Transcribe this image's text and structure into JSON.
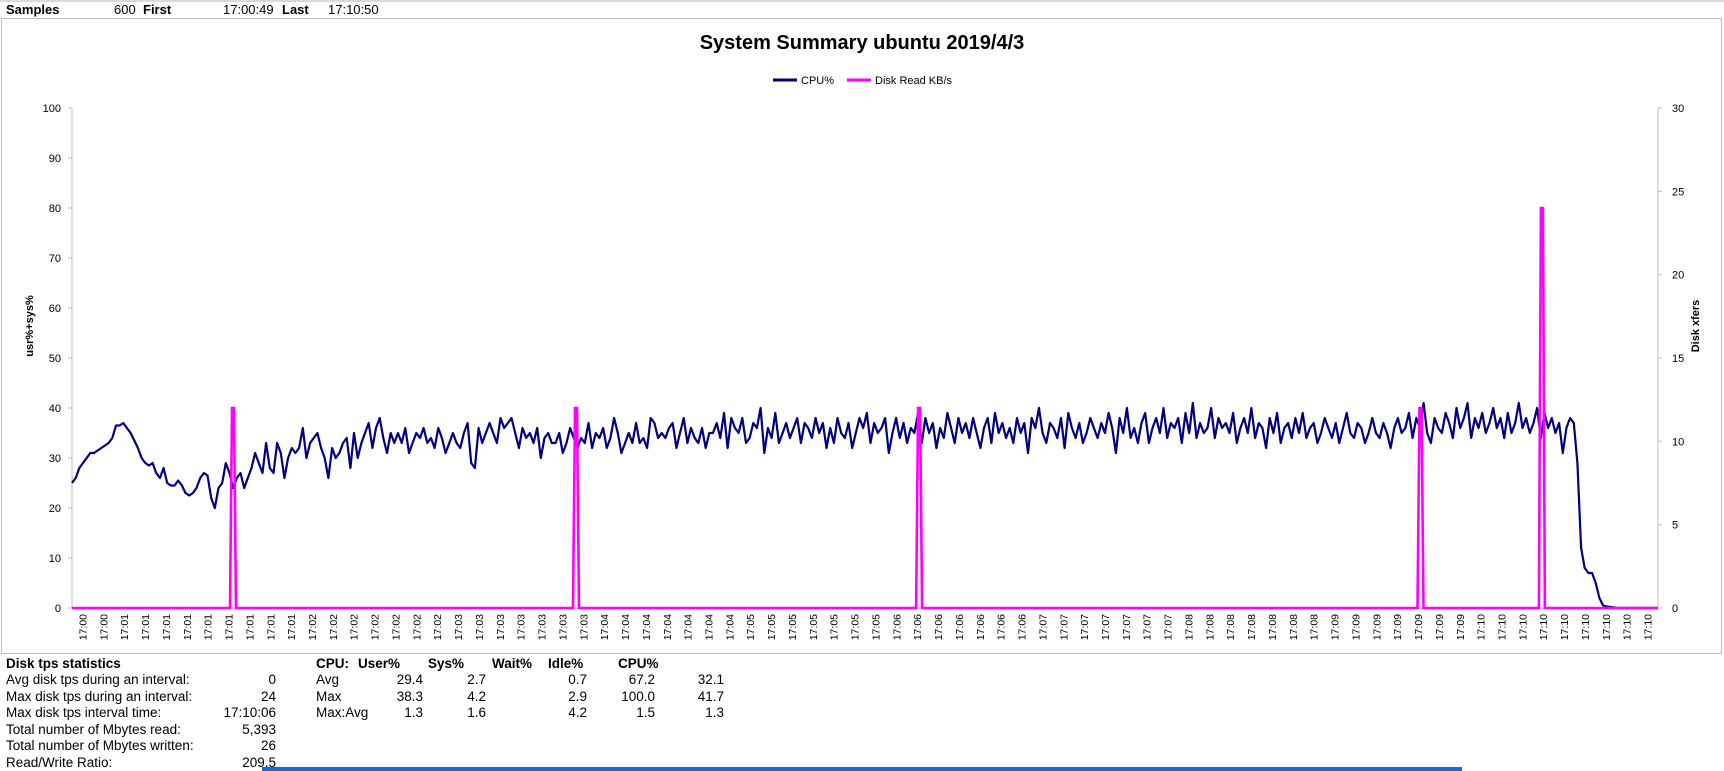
{
  "header": {
    "samples_label": "Samples",
    "samples_value": "600",
    "first_label": "First",
    "first_value": "17:00:49",
    "last_label": "Last",
    "last_value": "17:10:50"
  },
  "chart_data": {
    "type": "line",
    "title": "System Summary ubuntu  2019/4/3",
    "ylabel": "usr%+sys%",
    "y2label": "Disk xfers",
    "ylim": [
      0,
      100
    ],
    "y2lim": [
      0,
      30
    ],
    "yticks": [
      "0",
      "10",
      "20",
      "30",
      "40",
      "50",
      "60",
      "70",
      "80",
      "90",
      "100"
    ],
    "y2ticks": [
      "0",
      "5",
      "10",
      "15",
      "20",
      "25",
      "30"
    ],
    "grid": false,
    "legend_position": "top-center",
    "x_tick_labels": [
      "17:00",
      "17:00",
      "17:01",
      "17:01",
      "17:01",
      "17:01",
      "17:01",
      "17:01",
      "17:01",
      "17:01",
      "17:01",
      "17:02",
      "17:02",
      "17:02",
      "17:02",
      "17:02",
      "17:02",
      "17:02",
      "17:03",
      "17:03",
      "17:03",
      "17:03",
      "17:03",
      "17:03",
      "17:03",
      "17:04",
      "17:04",
      "17:04",
      "17:04",
      "17:04",
      "17:04",
      "17:04",
      "17:05",
      "17:05",
      "17:05",
      "17:05",
      "17:05",
      "17:05",
      "17:05",
      "17:06",
      "17:06",
      "17:06",
      "17:06",
      "17:06",
      "17:06",
      "17:06",
      "17:07",
      "17:07",
      "17:07",
      "17:07",
      "17:07",
      "17:07",
      "17:07",
      "17:08",
      "17:08",
      "17:08",
      "17:08",
      "17:08",
      "17:08",
      "17:08",
      "17:09",
      "17:09",
      "17:09",
      "17:09",
      "17:09",
      "17:09",
      "17:09",
      "17:10",
      "17:10",
      "17:10",
      "17:10",
      "17:10",
      "17:10",
      "17:10",
      "17:10",
      "17:10"
    ],
    "series": [
      {
        "name": "CPU%",
        "axis": "left",
        "color": "#000080",
        "values": [
          25,
          26,
          28,
          29,
          30,
          31,
          31,
          31.5,
          32,
          32.5,
          33,
          34,
          36.5,
          36.5,
          37,
          36,
          35,
          33.5,
          32,
          30,
          29,
          28.5,
          29,
          27,
          26,
          28,
          25,
          24.5,
          24.5,
          25.5,
          24.5,
          23,
          22.5,
          23,
          24,
          26,
          27,
          26.5,
          22,
          20,
          24,
          25,
          29,
          27,
          24,
          26,
          27,
          24,
          26,
          28,
          31,
          29,
          27,
          33,
          28,
          27,
          33,
          31,
          26,
          30,
          32,
          31,
          32,
          36,
          30,
          33,
          34,
          35,
          32,
          30,
          26,
          32,
          30,
          31,
          33,
          34,
          28,
          35,
          30,
          33,
          35,
          37,
          32,
          36,
          38,
          34,
          31,
          35,
          33,
          35,
          33,
          36,
          31,
          33,
          35,
          34,
          36,
          33,
          34,
          32,
          36,
          34,
          31,
          33,
          35,
          33,
          32,
          35,
          37,
          29,
          28,
          36,
          33,
          35,
          37,
          35,
          33,
          38,
          36,
          37,
          38,
          35,
          32,
          36,
          34,
          35,
          33,
          36,
          30,
          34,
          35,
          33,
          33,
          35,
          31,
          33,
          36,
          34,
          32,
          34,
          33,
          37,
          32,
          35,
          34,
          36,
          32,
          34,
          38,
          35,
          31,
          33,
          35,
          33,
          37,
          33,
          34,
          32,
          38,
          37,
          34,
          35,
          34,
          36,
          37,
          32,
          35,
          38,
          33,
          36,
          34,
          33,
          36,
          32,
          35,
          35,
          37,
          34,
          39,
          32,
          38,
          36,
          35,
          38,
          33,
          34,
          37,
          36,
          40,
          31,
          36,
          34,
          39,
          33,
          35,
          37,
          34,
          36,
          38,
          33,
          37,
          36,
          34,
          38,
          35,
          37,
          32,
          36,
          33,
          38,
          35,
          34,
          37,
          32,
          35,
          38,
          36,
          39,
          33,
          37,
          35,
          36,
          38,
          31,
          35,
          38,
          34,
          37,
          33,
          36,
          35,
          39,
          33,
          38,
          35,
          37,
          32,
          36,
          34,
          39,
          36,
          33,
          38,
          35,
          37,
          34,
          38,
          35,
          32,
          36,
          38,
          33,
          39,
          35,
          37,
          34,
          36,
          33,
          38,
          35,
          37,
          31,
          38,
          36,
          40,
          35,
          33,
          37,
          36,
          34,
          38,
          32,
          39,
          36,
          34,
          37,
          33,
          35,
          38,
          36,
          34,
          37,
          35,
          39,
          36,
          31,
          38,
          35,
          40,
          34,
          36,
          33,
          37,
          39,
          33,
          36,
          38,
          35,
          40,
          34,
          37,
          36,
          38,
          33,
          39,
          35,
          41,
          34,
          37,
          35,
          36,
          40,
          34,
          38,
          36,
          37,
          35,
          39,
          33,
          36,
          38,
          35,
          40,
          34,
          37,
          36,
          32,
          38,
          35,
          39,
          33,
          36,
          37,
          34,
          38,
          35,
          39,
          34,
          36,
          37,
          33,
          35,
          38,
          36,
          34,
          37,
          33,
          36,
          39,
          35,
          34,
          37,
          36,
          33,
          35,
          38,
          35,
          34,
          37,
          35,
          32,
          36,
          38,
          35,
          36,
          39,
          34,
          38,
          36,
          41,
          35,
          33,
          38,
          36,
          35,
          39,
          37,
          34,
          40,
          36,
          38,
          41,
          34,
          38,
          36,
          39,
          35,
          37,
          40,
          36,
          38,
          34,
          39,
          35,
          37,
          41,
          36,
          38,
          35,
          37,
          40,
          34,
          39,
          36,
          38,
          35,
          37,
          31,
          36,
          38,
          37,
          29,
          12,
          8,
          7,
          7,
          5,
          2,
          0.5,
          0.3,
          0.2,
          0.1,
          0,
          0,
          0,
          0,
          0,
          0,
          0,
          0,
          0,
          0,
          0,
          0
        ]
      },
      {
        "name": "Disk Read KB/s",
        "axis": "right",
        "color": "#ff00ff",
        "spikes": [
          {
            "time": "17:01:50",
            "value": 12
          },
          {
            "time": "17:04:00",
            "value": 12
          },
          {
            "time": "17:06:10",
            "value": 12
          },
          {
            "time": "17:09:20",
            "value": 12
          },
          {
            "time": "17:10:06",
            "value": 24
          }
        ]
      }
    ]
  },
  "disk_stats": {
    "heading": "Disk tps statistics",
    "rows": [
      {
        "label": "Avg disk tps during an interval:",
        "value": "0"
      },
      {
        "label": "Max disk tps during an interval:",
        "value": "24"
      },
      {
        "label": "Max disk tps interval time:",
        "value": "17:10:06"
      },
      {
        "label": "Total number of Mbytes read:",
        "value": "5,393"
      },
      {
        "label": "Total number of Mbytes written:",
        "value": "26"
      },
      {
        "label": "Read/Write Ratio:",
        "value": "209.5"
      }
    ]
  },
  "cpu_stats": {
    "headers": [
      "CPU:",
      "User%",
      "Sys%",
      "Wait%",
      "Idle%",
      "CPU%"
    ],
    "rows": [
      {
        "label": "Avg",
        "values": [
          "29.4",
          "2.7",
          "0.7",
          "67.2",
          "32.1"
        ]
      },
      {
        "label": "Max",
        "values": [
          "38.3",
          "4.2",
          "2.9",
          "100.0",
          "41.7"
        ]
      },
      {
        "label": "Max:Avg",
        "values": [
          "1.3",
          "1.6",
          "4.2",
          "1.5",
          "1.3"
        ]
      }
    ]
  }
}
